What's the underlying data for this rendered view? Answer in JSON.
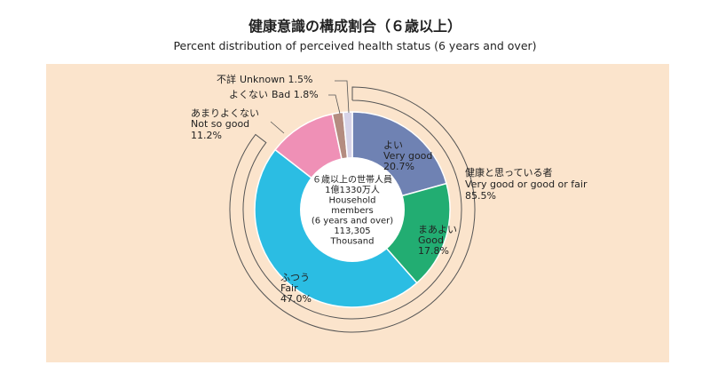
{
  "title": "健康意識の構成割合（６歳以上）",
  "subtitle": "Percent distribution of perceived health status (6 years and over)",
  "colors": {
    "panel": "#fbe4cc",
    "very_good": "#6f82b3",
    "good": "#22ad72",
    "fair": "#2bbde3",
    "not_so_good": "#ef90b6",
    "bad": "#b48c80",
    "unknown": "#d6d3e8"
  },
  "chart_data": {
    "type": "pie",
    "variant": "donut",
    "title": "健康意識の構成割合（６歳以上）",
    "subtitle": "Percent distribution of perceived health status (6 years and over)",
    "units": "%",
    "slices": [
      {
        "key": "very_good",
        "label_ja": "よい",
        "label_en": "Very good",
        "value": 20.7,
        "value_label": "20.7%",
        "color": "#6f82b3"
      },
      {
        "key": "good",
        "label_ja": "まあよい",
        "label_en": "Good",
        "value": 17.8,
        "value_label": "17.8%",
        "color": "#22ad72"
      },
      {
        "key": "fair",
        "label_ja": "ふつう",
        "label_en": "Fair",
        "value": 47.0,
        "value_label": "47.0%",
        "color": "#2bbde3"
      },
      {
        "key": "not_so_good",
        "label_ja": "あまりよくない",
        "label_en": "Not so good",
        "value": 11.2,
        "value_label": "11.2%",
        "color": "#ef90b6"
      },
      {
        "key": "bad",
        "label_ja": "よくない",
        "label_en": "Bad",
        "value": 1.8,
        "value_label": "Bad 1.8%",
        "color": "#b48c80"
      },
      {
        "key": "unknown",
        "label_ja": "不詳",
        "label_en": "Unknown",
        "value": 1.5,
        "value_label": "Unknown 1.5%",
        "color": "#d6d3e8"
      }
    ],
    "center_label": [
      "６歳以上の世帯人員",
      "1億1330万人",
      "Household",
      "members",
      "(6 years and over)",
      "113,305",
      "Thousand"
    ],
    "bracket": {
      "label_ja": "健康と思っている者",
      "label_en": "Very good or good or fair",
      "value": 85.5,
      "value_label": "85.5%"
    }
  }
}
